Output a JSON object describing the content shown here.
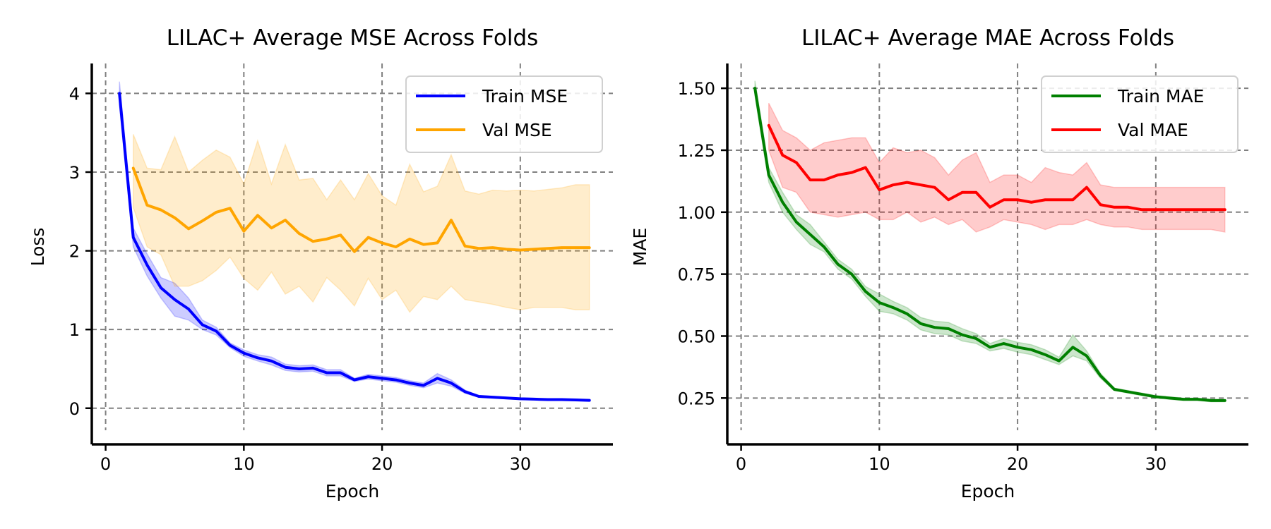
{
  "chart_data": [
    {
      "type": "line",
      "title": "LILAC+ Average MSE Across Folds",
      "xlabel": "Epoch",
      "ylabel": "Loss",
      "xlim": [
        -1,
        36.7
      ],
      "ylim": [
        -0.28,
        4.38
      ],
      "xticks": [
        0,
        10,
        20,
        30
      ],
      "yticks": [
        0,
        1,
        2,
        3,
        4
      ],
      "x_tick_labels": [
        "0",
        "10",
        "20",
        "30"
      ],
      "y_tick_labels": [
        "0",
        "1",
        "2",
        "3",
        "4"
      ],
      "grid": true,
      "legend_position": "top-right",
      "series": [
        {
          "name": "Train MSE",
          "color": "#0000ff",
          "x": [
            1,
            2,
            3,
            4,
            5,
            6,
            7,
            8,
            9,
            10,
            11,
            12,
            13,
            14,
            15,
            16,
            17,
            18,
            19,
            20,
            21,
            22,
            23,
            24,
            25,
            26,
            27,
            28,
            29,
            30,
            31,
            32,
            33,
            34,
            35
          ],
          "values": [
            4.0,
            2.17,
            1.82,
            1.53,
            1.38,
            1.26,
            1.06,
            0.98,
            0.8,
            0.7,
            0.64,
            0.6,
            0.52,
            0.5,
            0.51,
            0.45,
            0.45,
            0.36,
            0.4,
            0.38,
            0.36,
            0.32,
            0.29,
            0.38,
            0.32,
            0.21,
            0.15,
            0.14,
            0.13,
            0.12,
            0.115,
            0.11,
            0.11,
            0.105,
            0.1
          ],
          "lower": [
            3.85,
            2.05,
            1.68,
            1.4,
            1.17,
            1.12,
            1.0,
            0.93,
            0.77,
            0.66,
            0.6,
            0.55,
            0.48,
            0.46,
            0.47,
            0.41,
            0.41,
            0.34,
            0.37,
            0.35,
            0.33,
            0.29,
            0.26,
            0.32,
            0.28,
            0.19,
            0.14,
            0.13,
            0.12,
            0.11,
            0.105,
            0.1,
            0.1,
            0.1,
            0.09
          ],
          "upper": [
            4.15,
            2.29,
            1.96,
            1.66,
            1.59,
            1.4,
            1.12,
            1.03,
            0.83,
            0.74,
            0.68,
            0.65,
            0.56,
            0.54,
            0.55,
            0.49,
            0.49,
            0.38,
            0.43,
            0.41,
            0.39,
            0.35,
            0.32,
            0.44,
            0.36,
            0.23,
            0.16,
            0.15,
            0.14,
            0.13,
            0.125,
            0.12,
            0.12,
            0.11,
            0.11
          ]
        },
        {
          "name": "Val MSE",
          "color": "#ffa500",
          "x": [
            2,
            3,
            4,
            5,
            6,
            7,
            8,
            9,
            10,
            11,
            12,
            13,
            14,
            15,
            16,
            17,
            18,
            19,
            20,
            21,
            22,
            23,
            24,
            25,
            26,
            27,
            28,
            29,
            30,
            31,
            32,
            33,
            34,
            35
          ],
          "values": [
            3.05,
            2.58,
            2.52,
            2.42,
            2.28,
            2.38,
            2.49,
            2.54,
            2.25,
            2.45,
            2.29,
            2.39,
            2.22,
            2.12,
            2.15,
            2.2,
            1.99,
            2.17,
            2.1,
            2.05,
            2.15,
            2.08,
            2.1,
            2.39,
            2.06,
            2.03,
            2.04,
            2.02,
            2.01,
            2.02,
            2.03,
            2.04,
            2.04,
            2.04
          ],
          "lower": [
            2.55,
            2.05,
            1.95,
            1.55,
            1.55,
            1.62,
            1.75,
            1.92,
            1.65,
            1.5,
            1.73,
            1.45,
            1.55,
            1.35,
            1.66,
            1.5,
            1.3,
            1.65,
            1.38,
            1.5,
            1.22,
            1.42,
            1.38,
            1.55,
            1.38,
            1.35,
            1.32,
            1.28,
            1.25,
            1.28,
            1.28,
            1.28,
            1.25,
            1.25
          ],
          "upper": [
            3.48,
            3.05,
            3.03,
            3.45,
            3.0,
            3.15,
            3.28,
            3.19,
            2.85,
            3.4,
            2.85,
            3.35,
            2.9,
            2.92,
            2.65,
            2.9,
            2.65,
            2.98,
            2.7,
            2.58,
            3.1,
            2.75,
            2.82,
            3.22,
            2.76,
            2.72,
            2.77,
            2.76,
            2.77,
            2.76,
            2.78,
            2.8,
            2.84,
            2.84
          ]
        }
      ]
    },
    {
      "type": "line",
      "title": "LILAC+ Average MAE Across Folds",
      "xlabel": "Epoch",
      "ylabel": "MAE",
      "xlim": [
        -1,
        36.7
      ],
      "ylim": [
        0.12,
        1.6
      ],
      "xticks": [
        0,
        10,
        20,
        30
      ],
      "yticks": [
        0.25,
        0.5,
        0.75,
        1.0,
        1.25,
        1.5
      ],
      "x_tick_labels": [
        "0",
        "10",
        "20",
        "30"
      ],
      "y_tick_labels": [
        "0.25",
        "0.50",
        "0.75",
        "1.00",
        "1.25",
        "1.50"
      ],
      "grid": true,
      "legend_position": "top-right",
      "series": [
        {
          "name": "Train MAE",
          "color": "#008000",
          "x": [
            1,
            2,
            3,
            4,
            5,
            6,
            7,
            8,
            9,
            10,
            11,
            12,
            13,
            14,
            15,
            16,
            17,
            18,
            19,
            20,
            21,
            22,
            23,
            24,
            25,
            26,
            27,
            28,
            29,
            30,
            31,
            32,
            33,
            34,
            35
          ],
          "values": [
            1.5,
            1.15,
            1.04,
            0.96,
            0.91,
            0.86,
            0.79,
            0.75,
            0.68,
            0.635,
            0.615,
            0.59,
            0.55,
            0.535,
            0.53,
            0.505,
            0.49,
            0.455,
            0.47,
            0.455,
            0.445,
            0.425,
            0.4,
            0.455,
            0.42,
            0.34,
            0.285,
            0.275,
            0.265,
            0.255,
            0.25,
            0.245,
            0.245,
            0.24,
            0.24
          ],
          "lower": [
            1.47,
            1.12,
            1.0,
            0.93,
            0.87,
            0.84,
            0.77,
            0.73,
            0.66,
            0.6,
            0.59,
            0.565,
            0.525,
            0.51,
            0.505,
            0.48,
            0.47,
            0.44,
            0.45,
            0.435,
            0.425,
            0.405,
            0.385,
            0.42,
            0.4,
            0.33,
            0.28,
            0.27,
            0.26,
            0.25,
            0.245,
            0.24,
            0.24,
            0.235,
            0.235
          ],
          "upper": [
            1.53,
            1.18,
            1.08,
            0.99,
            0.95,
            0.88,
            0.81,
            0.77,
            0.7,
            0.67,
            0.64,
            0.615,
            0.575,
            0.56,
            0.555,
            0.53,
            0.51,
            0.47,
            0.49,
            0.475,
            0.465,
            0.445,
            0.415,
            0.505,
            0.44,
            0.35,
            0.29,
            0.28,
            0.27,
            0.26,
            0.255,
            0.25,
            0.25,
            0.245,
            0.245
          ]
        },
        {
          "name": "Val MAE",
          "color": "#ff0000",
          "x": [
            2,
            3,
            4,
            5,
            6,
            7,
            8,
            9,
            10,
            11,
            12,
            13,
            14,
            15,
            16,
            17,
            18,
            19,
            20,
            21,
            22,
            23,
            24,
            25,
            26,
            27,
            28,
            29,
            30,
            31,
            32,
            33,
            34,
            35
          ],
          "values": [
            1.35,
            1.23,
            1.2,
            1.13,
            1.13,
            1.15,
            1.16,
            1.18,
            1.09,
            1.11,
            1.12,
            1.11,
            1.1,
            1.05,
            1.08,
            1.08,
            1.02,
            1.05,
            1.05,
            1.04,
            1.05,
            1.05,
            1.05,
            1.1,
            1.03,
            1.02,
            1.02,
            1.01,
            1.01,
            1.01,
            1.01,
            1.01,
            1.01,
            1.01
          ],
          "lower": [
            1.25,
            1.1,
            1.08,
            1.0,
            0.99,
            0.98,
            0.99,
            1.0,
            0.97,
            0.97,
            1.0,
            0.96,
            0.98,
            0.95,
            0.97,
            0.92,
            0.94,
            0.97,
            0.96,
            0.95,
            0.93,
            0.95,
            0.95,
            0.97,
            0.95,
            0.94,
            0.94,
            0.93,
            0.93,
            0.93,
            0.93,
            0.93,
            0.93,
            0.92
          ],
          "upper": [
            1.44,
            1.33,
            1.3,
            1.25,
            1.28,
            1.29,
            1.3,
            1.3,
            1.2,
            1.26,
            1.24,
            1.25,
            1.22,
            1.15,
            1.21,
            1.24,
            1.12,
            1.15,
            1.15,
            1.12,
            1.18,
            1.16,
            1.15,
            1.2,
            1.11,
            1.1,
            1.1,
            1.1,
            1.1,
            1.1,
            1.1,
            1.1,
            1.1,
            1.1
          ]
        }
      ]
    }
  ]
}
